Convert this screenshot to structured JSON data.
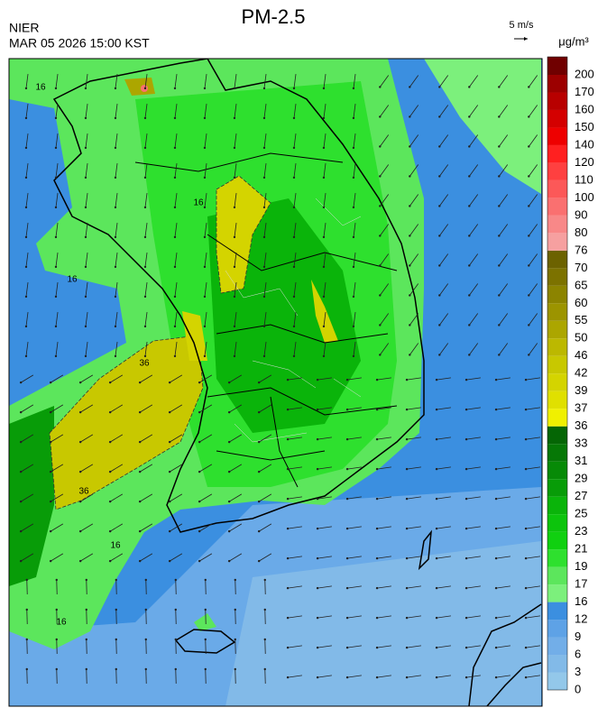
{
  "header": {
    "title": "PM-2.5",
    "agency": "NIER",
    "timestamp": "MAR 05 2026 15:00 KST"
  },
  "wind_scale": {
    "label": "5 m/s"
  },
  "colorbar": {
    "unit": "μg/m³",
    "levels": [
      0,
      3,
      6,
      9,
      12,
      16,
      17,
      19,
      21,
      23,
      25,
      27,
      29,
      31,
      33,
      36,
      37,
      39,
      42,
      46,
      50,
      55,
      60,
      65,
      70,
      76,
      80,
      90,
      100,
      110,
      120,
      140,
      150,
      160,
      170,
      200
    ],
    "colors": [
      "#93c8ea",
      "#82bae8",
      "#72aee8",
      "#5ea2e6",
      "#3b8fe0",
      "#7cf07c",
      "#5ce65c",
      "#2ee02e",
      "#10d010",
      "#0cc40c",
      "#0ab40a",
      "#089c08",
      "#078a07",
      "#067806",
      "#056605",
      "#f0f000",
      "#e0e000",
      "#d4d400",
      "#c8c800",
      "#bcb800",
      "#aca600",
      "#9c9400",
      "#8c8400",
      "#7c7200",
      "#6c6200",
      "#f6a0a0",
      "#f88888",
      "#fa7070",
      "#fc5858",
      "#fe4040",
      "#ff2020",
      "#ee0000",
      "#d40000",
      "#b80000",
      "#9c0000",
      "#700000"
    ]
  },
  "map": {
    "contour_labels": [
      16,
      16,
      16,
      16,
      36,
      36,
      16
    ]
  }
}
